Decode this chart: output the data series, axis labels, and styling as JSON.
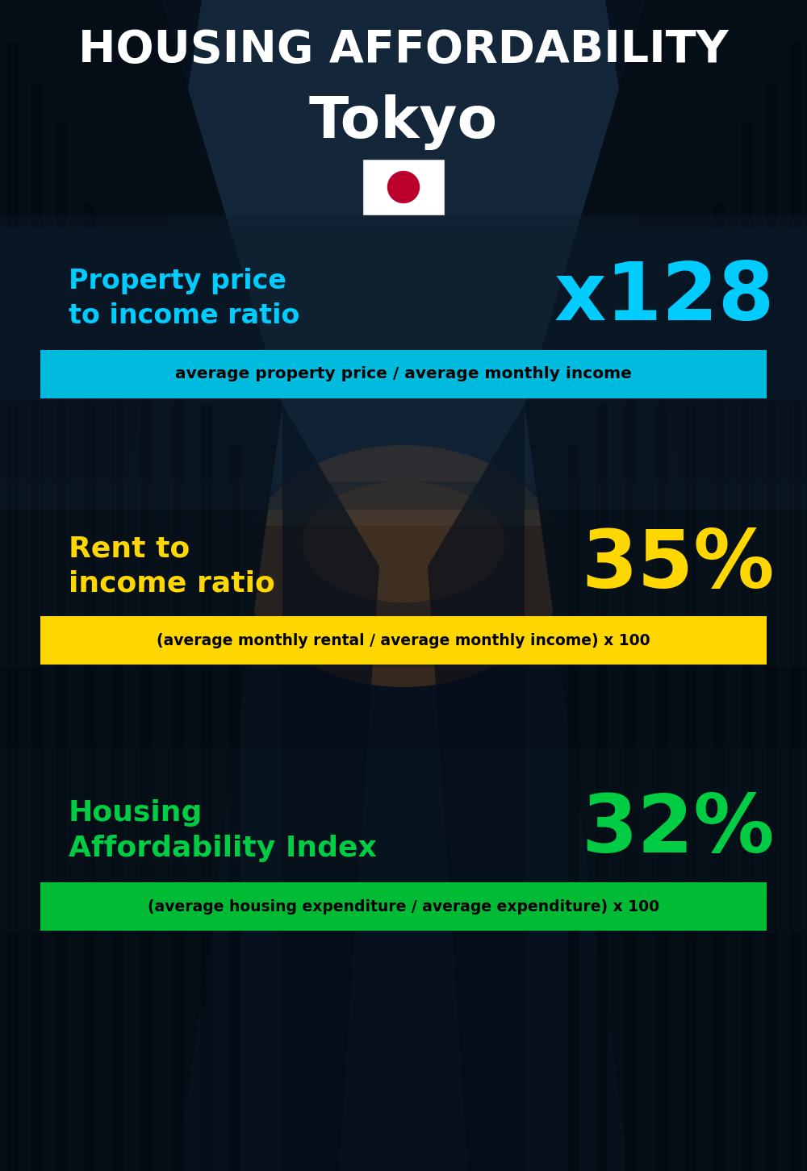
{
  "title_main": "HOUSING AFFORDABILITY",
  "title_city": "Tokyo",
  "bg_color": "#060e18",
  "section1_label": "Property price\nto income ratio",
  "section1_value": "x128",
  "section1_label_color": "#00ccff",
  "section1_value_color": "#00ccff",
  "section1_banner_text": "average property price / average monthly income",
  "section1_banner_bg": "#00bbdd",
  "section2_label": "Rent to\nincome ratio",
  "section2_value": "35%",
  "section2_label_color": "#ffd700",
  "section2_value_color": "#ffd700",
  "section2_banner_text": "(average monthly rental / average monthly income) x 100",
  "section2_banner_bg": "#ffd700",
  "section3_label": "Housing\nAffordability Index",
  "section3_value": "32%",
  "section3_label_color": "#00cc44",
  "section3_value_color": "#00cc44",
  "section3_banner_text": "(average housing expenditure / average expenditure) x 100",
  "section3_banner_bg": "#00bb33",
  "flag_white": "#ffffff",
  "flag_red": "#BC002D"
}
